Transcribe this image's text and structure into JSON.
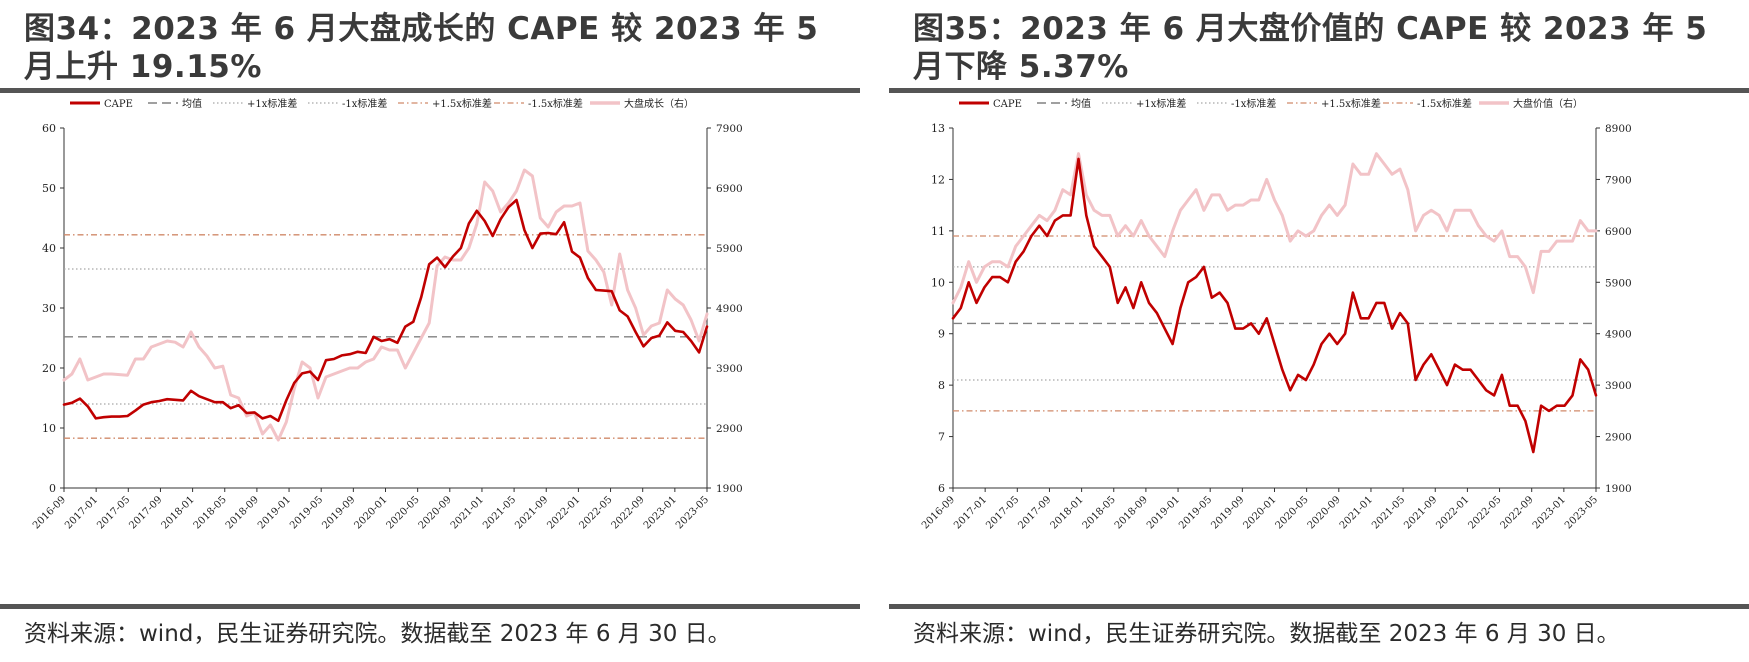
{
  "colors": {
    "cape": "#c00000",
    "mean": "#808080",
    "std1": "#a6a6a6",
    "std15": "#d08a6a",
    "index": "#f2c3c7"
  },
  "panels": [
    {
      "title": "图34：2023 年 6 月大盘成长的 CAPE 较 2023 年 5 月上升 19.15%",
      "source": "资料来源：wind，民生证券研究院。数据截至 2023 年 6 月 30 日。",
      "legend": [
        "CAPE",
        "均值",
        "+1x标准差",
        "-1x标准差",
        "+1.5x标准差",
        "-1.5x标准差",
        "大盘成长（右）"
      ],
      "chart_data": {
        "type": "line",
        "x_labels": [
          "2016-09",
          "2017-01",
          "2017-05",
          "2017-09",
          "2018-01",
          "2018-05",
          "2018-09",
          "2019-01",
          "2019-05",
          "2019-09",
          "2020-01",
          "2020-05",
          "2020-09",
          "2021-01",
          "2021-05",
          "2021-09",
          "2022-01",
          "2022-05",
          "2022-09",
          "2023-01",
          "2023-05"
        ],
        "left_ticks": [
          "0",
          "10",
          "20",
          "30",
          "40",
          "50",
          "60"
        ],
        "right_ticks": [
          "1900",
          "2900",
          "3900",
          "4900",
          "5900",
          "6900",
          "7900"
        ],
        "ylim": [
          0,
          60
        ],
        "y2lim": [
          1900,
          7900
        ],
        "reference_lines": {
          "mean": 25.2,
          "plus_1x": 36.5,
          "minus_1x": 14.0,
          "plus_1_5x": 42.2,
          "minus_1_5x": 8.3
        },
        "series": [
          {
            "name": "CAPE",
            "axis": "left",
            "values": [
              13.9,
              14.2,
              14.9,
              13.6,
              11.6,
              11.8,
              11.9,
              11.9,
              12.0,
              12.9,
              13.9,
              14.3,
              14.5,
              14.8,
              14.7,
              14.6,
              16.2,
              15.3,
              14.8,
              14.3,
              14.3,
              13.3,
              13.8,
              12.5,
              12.6,
              11.6,
              12.0,
              11.2,
              14.6,
              17.5,
              19.1,
              19.4,
              18.0,
              21.3,
              21.5,
              22.1,
              22.3,
              22.7,
              22.5,
              25.2,
              24.5,
              24.8,
              24.2,
              26.9,
              27.7,
              31.8,
              37.3,
              38.4,
              36.8,
              38.6,
              40.0,
              44.1,
              46.2,
              44.5,
              42.0,
              44.8,
              46.8,
              48.0,
              43.0,
              40.0,
              42.4,
              42.5,
              42.3,
              44.3,
              39.4,
              38.4,
              35.0,
              33.0,
              32.9,
              32.8,
              29.6,
              28.6,
              26.0,
              23.6,
              25.0,
              25.4,
              27.6,
              26.2,
              26.0,
              24.5,
              22.6,
              26.9
            ]
          },
          {
            "name": "大盘成长（右）",
            "axis": "right",
            "values": [
              3700,
              3800,
              4050,
              3700,
              3750,
              3800,
              3800,
              3790,
              3780,
              4050,
              4050,
              4250,
              4300,
              4350,
              4330,
              4250,
              4500,
              4250,
              4100,
              3900,
              3930,
              3450,
              3400,
              3100,
              3150,
              2800,
              2950,
              2700,
              3000,
              3550,
              4000,
              3900,
              3400,
              3750,
              3800,
              3850,
              3900,
              3900,
              4000,
              4050,
              4250,
              4200,
              4200,
              3900,
              4150,
              4400,
              4650,
              5600,
              5750,
              5700,
              5700,
              5900,
              6300,
              7000,
              6850,
              6500,
              6650,
              6850,
              7200,
              7100,
              6400,
              6250,
              6500,
              6600,
              6600,
              6650,
              5850,
              5700,
              5500,
              4950,
              5800,
              5200,
              4900,
              4450,
              4600,
              4650,
              5200,
              5050,
              4950,
              4700,
              4350,
              4800
            ]
          }
        ]
      }
    },
    {
      "title": "图35：2023 年 6 月大盘价值的 CAPE 较 2023 年 5 月下降 5.37%",
      "source": "资料来源：wind，民生证券研究院。数据截至 2023 年 6 月 30 日。",
      "legend": [
        "CAPE",
        "均值",
        "+1x标准差",
        "-1x标准差",
        "+1.5x标准差",
        "-1.5x标准差",
        "大盘价值（右）"
      ],
      "chart_data": {
        "type": "line",
        "x_labels": [
          "2016-09",
          "2017-01",
          "2017-05",
          "2017-09",
          "2018-01",
          "2018-05",
          "2018-09",
          "2019-01",
          "2019-05",
          "2019-09",
          "2020-01",
          "2020-05",
          "2020-09",
          "2021-01",
          "2021-05",
          "2021-09",
          "2022-01",
          "2022-05",
          "2022-09",
          "2023-01",
          "2023-05"
        ],
        "left_ticks": [
          "6",
          "7",
          "8",
          "9",
          "10",
          "11",
          "12",
          "13"
        ],
        "right_ticks": [
          "1900",
          "2900",
          "3900",
          "4900",
          "5900",
          "6900",
          "7900",
          "8900"
        ],
        "ylim": [
          6,
          13
        ],
        "y2lim": [
          1900,
          8900
        ],
        "reference_lines": {
          "mean": 9.2,
          "plus_1x": 10.3,
          "minus_1x": 8.1,
          "plus_1_5x": 10.9,
          "minus_1_5x": 7.5
        },
        "series": [
          {
            "name": "CAPE",
            "axis": "left",
            "values": [
              9.3,
              9.5,
              10.0,
              9.6,
              9.9,
              10.1,
              10.1,
              10.0,
              10.4,
              10.6,
              10.9,
              11.1,
              10.9,
              11.2,
              11.3,
              11.3,
              12.4,
              11.3,
              10.7,
              10.5,
              10.3,
              9.6,
              9.9,
              9.5,
              10.0,
              9.6,
              9.4,
              9.1,
              8.8,
              9.5,
              10.0,
              10.1,
              10.3,
              9.7,
              9.8,
              9.6,
              9.1,
              9.1,
              9.2,
              9.0,
              9.3,
              8.8,
              8.3,
              7.9,
              8.2,
              8.1,
              8.4,
              8.8,
              9.0,
              8.8,
              9.0,
              9.8,
              9.3,
              9.3,
              9.6,
              9.6,
              9.1,
              9.4,
              9.2,
              8.1,
              8.4,
              8.6,
              8.3,
              8.0,
              8.4,
              8.3,
              8.3,
              8.1,
              7.9,
              7.8,
              8.2,
              7.6,
              7.6,
              7.3,
              6.7,
              7.6,
              7.5,
              7.6,
              7.6,
              7.8,
              8.5,
              8.3,
              7.8
            ]
          },
          {
            "name": "大盘价值（右）",
            "axis": "right",
            "values": [
              5500,
              5800,
              6300,
              5900,
              6200,
              6300,
              6300,
              6200,
              6600,
              6800,
              7000,
              7200,
              7100,
              7300,
              7700,
              7600,
              8400,
              7600,
              7300,
              7200,
              7200,
              6800,
              7000,
              6800,
              7100,
              6800,
              6600,
              6400,
              6900,
              7300,
              7500,
              7700,
              7300,
              7600,
              7600,
              7300,
              7400,
              7400,
              7500,
              7500,
              7900,
              7500,
              7200,
              6700,
              6900,
              6800,
              6900,
              7200,
              7400,
              7200,
              7400,
              8200,
              8000,
              8000,
              8400,
              8200,
              8000,
              8100,
              7700,
              6900,
              7200,
              7300,
              7200,
              6900,
              7300,
              7300,
              7300,
              7000,
              6800,
              6700,
              6900,
              6400,
              6400,
              6200,
              5700,
              6500,
              6500,
              6700,
              6700,
              6700,
              7100,
              6900,
              6900
            ]
          }
        ]
      }
    }
  ]
}
